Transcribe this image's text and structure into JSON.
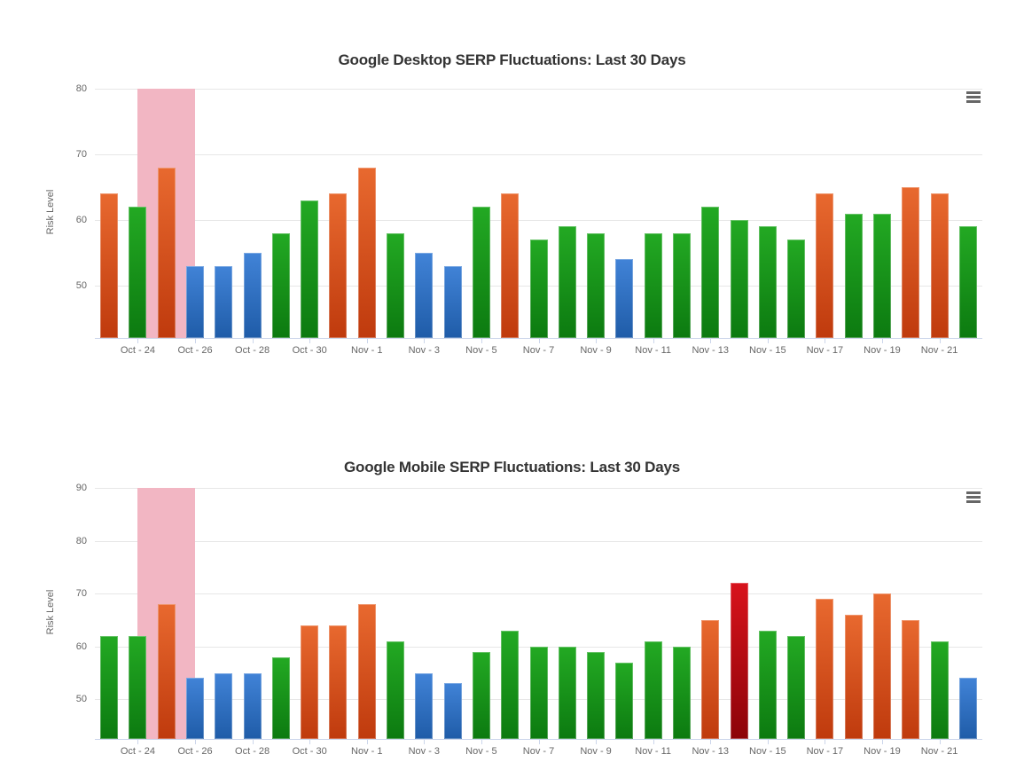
{
  "page": {
    "background": "#ffffff"
  },
  "palette": {
    "orange_top": "#e8692f",
    "orange_bottom": "#bf3a0d",
    "green_top": "#23a923",
    "green_bottom": "#0c7a10",
    "blue_top": "#4183d7",
    "blue_bottom": "#1f5ca8",
    "red_top": "#d8131c",
    "red_bottom": "#8c0308",
    "band_pink": "#f2b6c3",
    "grid": "#e7e7e7",
    "axis_line": "#ccd6eb",
    "label_color": "#666666",
    "title_color": "#333333"
  },
  "chart_data": [
    {
      "type": "bar",
      "title": "Google Desktop SERP Fluctuations: Last 30 Days",
      "xlabel": "",
      "ylabel": "Risk Level",
      "ylim": [
        42,
        80
      ],
      "yticks": [
        50,
        60,
        70,
        80
      ],
      "grid": true,
      "legend": false,
      "menu_icon": "hamburger-menu-icon",
      "categories": [
        "Oct - 23",
        "Oct - 24",
        "Oct - 25",
        "Oct - 26",
        "Oct - 27",
        "Oct - 28",
        "Oct - 29",
        "Oct - 30",
        "Oct - 31",
        "Nov - 1",
        "Nov - 2",
        "Nov - 3",
        "Nov - 4",
        "Nov - 5",
        "Nov - 6",
        "Nov - 7",
        "Nov - 8",
        "Nov - 9",
        "Nov - 10",
        "Nov - 11",
        "Nov - 12",
        "Nov - 13",
        "Nov - 14",
        "Nov - 15",
        "Nov - 16",
        "Nov - 17",
        "Nov - 18",
        "Nov - 19",
        "Nov - 20",
        "Nov - 21",
        "Nov - 22"
      ],
      "values": [
        64,
        62,
        68,
        53,
        53,
        55,
        58,
        63,
        64,
        68,
        58,
        55,
        53,
        62,
        64,
        57,
        59,
        58,
        54,
        58,
        58,
        62,
        60,
        59,
        57,
        64,
        61,
        61,
        65,
        64,
        59
      ],
      "bar_colors": [
        "orange",
        "green",
        "orange",
        "blue",
        "blue",
        "blue",
        "green",
        "green",
        "orange",
        "orange",
        "green",
        "blue",
        "blue",
        "green",
        "orange",
        "green",
        "green",
        "green",
        "blue",
        "green",
        "green",
        "green",
        "green",
        "green",
        "green",
        "orange",
        "green",
        "green",
        "orange",
        "orange",
        "green"
      ],
      "x_tick_labels": [
        "Oct - 24",
        "Oct - 26",
        "Oct - 28",
        "Oct - 30",
        "Nov - 1",
        "Nov - 3",
        "Nov - 5",
        "Nov - 7",
        "Nov - 9",
        "Nov - 11",
        "Nov - 13",
        "Nov - 15",
        "Nov - 17",
        "Nov - 19",
        "Nov - 21"
      ],
      "plot_band": {
        "from": "Oct - 24",
        "to": "Oct - 26",
        "color_key": "band_pink"
      }
    },
    {
      "type": "bar",
      "title": "Google Mobile SERP Fluctuations: Last 30 Days",
      "xlabel": "",
      "ylabel": "Risk Level",
      "ylim": [
        42.5,
        90
      ],
      "yticks": [
        50,
        60,
        70,
        80,
        90
      ],
      "grid": true,
      "legend": false,
      "menu_icon": "hamburger-menu-icon",
      "categories": [
        "Oct - 23",
        "Oct - 24",
        "Oct - 25",
        "Oct - 26",
        "Oct - 27",
        "Oct - 28",
        "Oct - 29",
        "Oct - 30",
        "Oct - 31",
        "Nov - 1",
        "Nov - 2",
        "Nov - 3",
        "Nov - 4",
        "Nov - 5",
        "Nov - 6",
        "Nov - 7",
        "Nov - 8",
        "Nov - 9",
        "Nov - 10",
        "Nov - 11",
        "Nov - 12",
        "Nov - 13",
        "Nov - 14",
        "Nov - 15",
        "Nov - 16",
        "Nov - 17",
        "Nov - 18",
        "Nov - 19",
        "Nov - 20",
        "Nov - 21",
        "Nov - 22"
      ],
      "values": [
        62,
        62,
        68,
        54,
        55,
        55,
        58,
        64,
        64,
        68,
        61,
        55,
        53,
        59,
        63,
        60,
        60,
        59,
        57,
        61,
        60,
        65,
        72,
        63,
        62,
        69,
        66,
        70,
        65,
        61,
        54
      ],
      "bar_colors": [
        "green",
        "green",
        "orange",
        "blue",
        "blue",
        "blue",
        "green",
        "orange",
        "orange",
        "orange",
        "green",
        "blue",
        "blue",
        "green",
        "green",
        "green",
        "green",
        "green",
        "green",
        "green",
        "green",
        "orange",
        "red",
        "green",
        "green",
        "orange",
        "orange",
        "orange",
        "orange",
        "green",
        "blue"
      ],
      "x_tick_labels": [
        "Oct - 24",
        "Oct - 26",
        "Oct - 28",
        "Oct - 30",
        "Nov - 1",
        "Nov - 3",
        "Nov - 5",
        "Nov - 7",
        "Nov - 9",
        "Nov - 11",
        "Nov - 13",
        "Nov - 15",
        "Nov - 17",
        "Nov - 19",
        "Nov - 21"
      ],
      "plot_band": {
        "from": "Oct - 24",
        "to": "Oct - 26",
        "color_key": "band_pink"
      }
    }
  ]
}
